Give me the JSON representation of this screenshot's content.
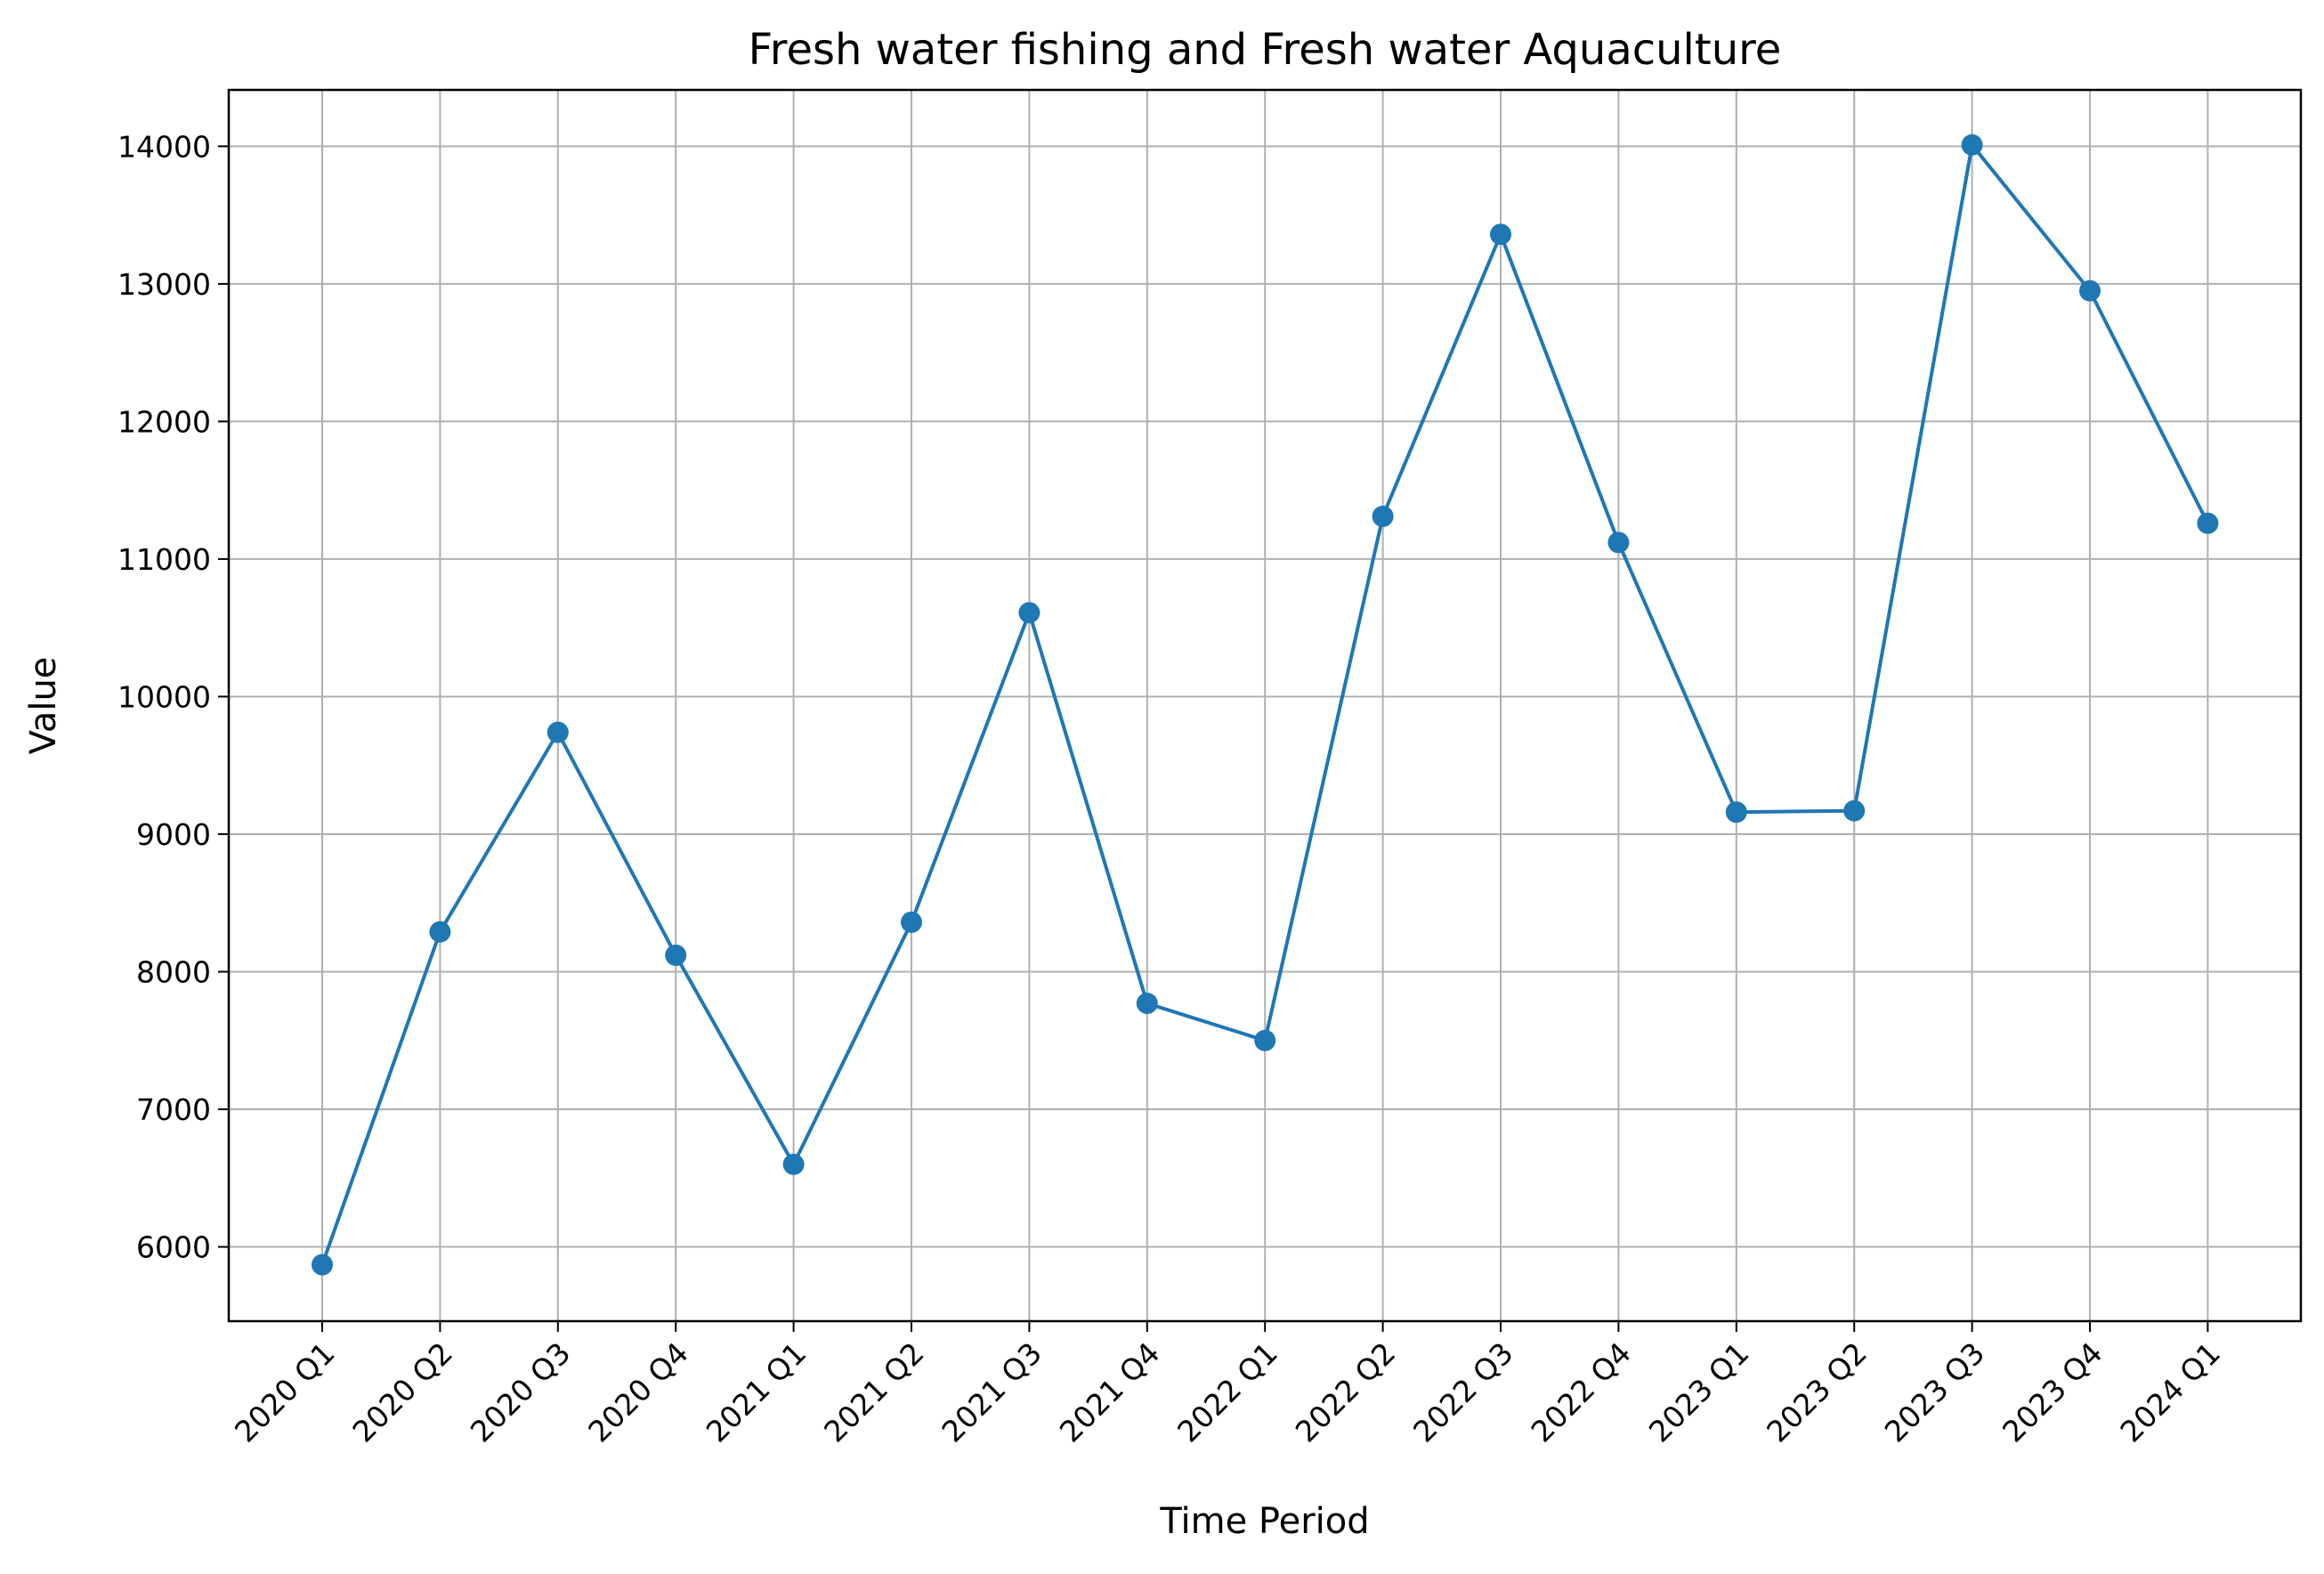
{
  "chart_data": {
    "type": "line",
    "title": "Fresh water fishing and Fresh water Aquaculture",
    "xlabel": "Time Period",
    "ylabel": "Value",
    "categories": [
      "2020 Q1",
      "2020 Q2",
      "2020 Q3",
      "2020 Q4",
      "2021 Q1",
      "2021 Q2",
      "2021 Q3",
      "2021 Q4",
      "2022 Q1",
      "2022 Q2",
      "2022 Q3",
      "2022 Q4",
      "2023 Q1",
      "2023 Q2",
      "2023 Q3",
      "2023 Q4",
      "2024 Q1"
    ],
    "series": [
      {
        "values": [
          5870,
          8290,
          9740,
          8120,
          6600,
          8360,
          10610,
          7770,
          7500,
          11310,
          13360,
          11120,
          9160,
          9170,
          14010,
          12950,
          11260
        ],
        "color": "#1f77b4",
        "marker": "circle"
      }
    ],
    "yticks": [
      6000,
      7000,
      8000,
      9000,
      10000,
      11000,
      12000,
      13000,
      14000
    ],
    "ylim": [
      5460,
      14410
    ],
    "grid": true,
    "legend": "none"
  }
}
